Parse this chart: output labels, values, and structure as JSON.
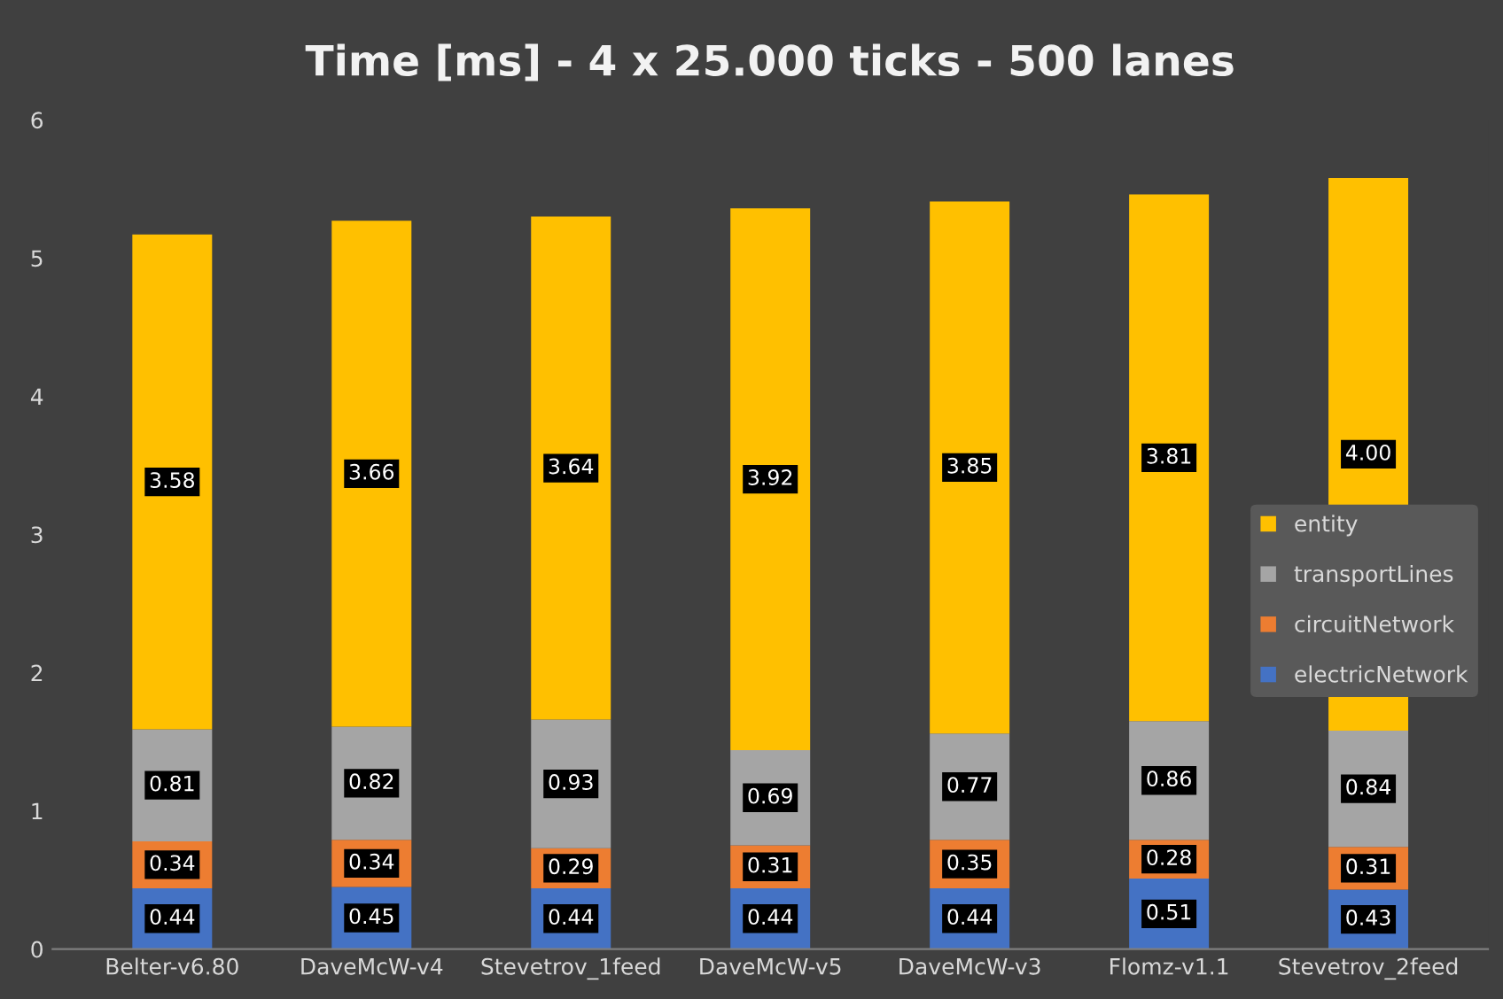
{
  "chart_data": {
    "type": "bar",
    "title": "Time [ms] - 4 x 25.000 ticks - 500 lanes",
    "stacked": true,
    "categories": [
      "Belter-v6.80",
      "DaveMcW-v4",
      "Stevetrov_1feed",
      "DaveMcW-v5",
      "DaveMcW-v3",
      "Flomz-v1.1",
      "Stevetrov_2feed"
    ],
    "series": [
      {
        "name": "electricNetwork",
        "color": "#4472c4",
        "values": [
          0.44,
          0.45,
          0.44,
          0.44,
          0.44,
          0.51,
          0.43
        ],
        "value_labels": [
          "0.44",
          "0.45",
          "0.44",
          "0.44",
          "0.44",
          "0.51",
          "0.43"
        ]
      },
      {
        "name": "circuitNetwork",
        "color": "#ed7d31",
        "values": [
          0.34,
          0.34,
          0.29,
          0.31,
          0.35,
          0.28,
          0.31
        ],
        "value_labels": [
          "0.34",
          "0.34",
          "0.29",
          "0.31",
          "0.35",
          "0.28",
          "0.31"
        ]
      },
      {
        "name": "transportLines",
        "color": "#a5a5a5",
        "values": [
          0.81,
          0.82,
          0.93,
          0.69,
          0.77,
          0.86,
          0.84
        ],
        "value_labels": [
          "0.81",
          "0.82",
          "0.93",
          "0.69",
          "0.77",
          "0.86",
          "0.84"
        ]
      },
      {
        "name": "entity",
        "color": "#ffc000",
        "values": [
          3.58,
          3.66,
          3.64,
          3.92,
          3.85,
          3.81,
          4.0
        ],
        "value_labels": [
          "3.58",
          "3.66",
          "3.64",
          "3.92",
          "3.85",
          "3.81",
          "4.00"
        ]
      }
    ],
    "ylim": [
      0,
      6
    ],
    "yticks": [
      0,
      1,
      2,
      3,
      4,
      5,
      6
    ],
    "grid": false,
    "legend": "right"
  }
}
